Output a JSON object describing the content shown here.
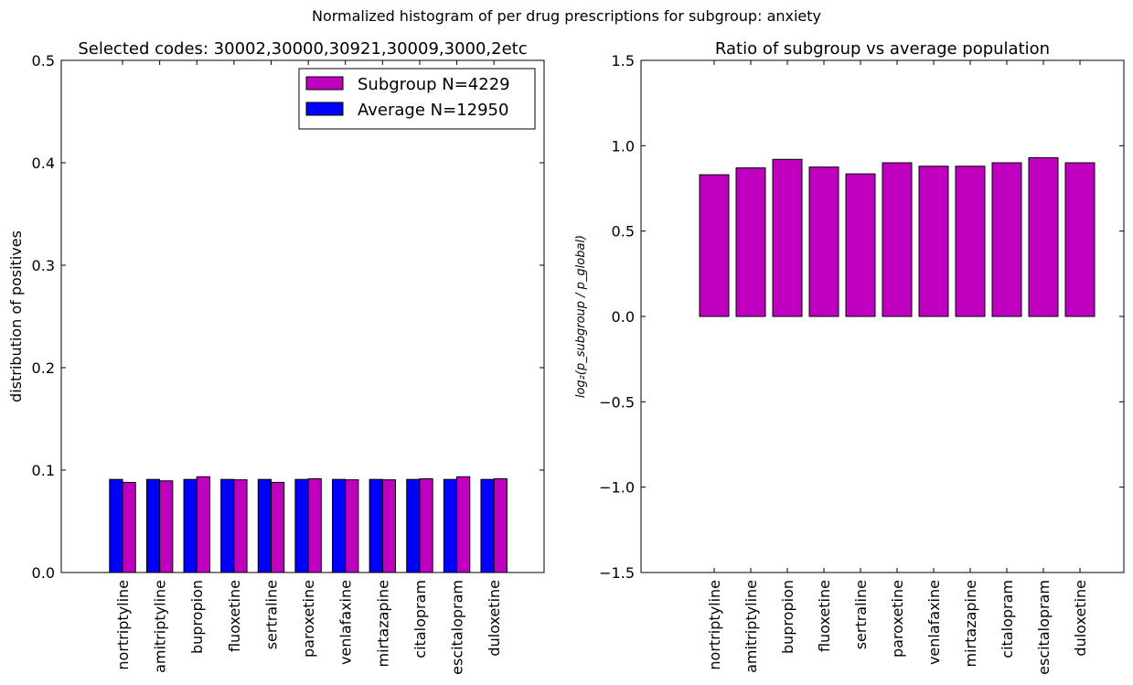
{
  "figure": {
    "suptitle": "Normalized histogram of per drug prescriptions for subgroup: anxiety"
  },
  "chart_data": [
    {
      "type": "bar",
      "title": "Selected codes: 30002,30000,30921,30009,3000,2etc",
      "xlabel": "",
      "ylabel": "distribution of positives",
      "ylim": [
        0,
        0.5
      ],
      "yticks": [
        "0.0",
        "0.1",
        "0.2",
        "0.3",
        "0.4",
        "0.5"
      ],
      "categories": [
        "nortriptyline",
        "amitriptyline",
        "bupropion",
        "fluoxetine",
        "sertraline",
        "paroxetine",
        "venlafaxine",
        "mirtazapine",
        "citalopram",
        "escitalopram",
        "duloxetine"
      ],
      "series": [
        {
          "name": "Average N=12950",
          "color": "#0000ff",
          "values": [
            0.0909,
            0.0909,
            0.0909,
            0.0909,
            0.0909,
            0.0909,
            0.0909,
            0.0909,
            0.0909,
            0.0909,
            0.0909
          ]
        },
        {
          "name": "Subgroup N=4229",
          "color": "#bf00bf",
          "values": [
            0.088,
            0.0895,
            0.0935,
            0.0905,
            0.088,
            0.0915,
            0.0905,
            0.0905,
            0.0915,
            0.0935,
            0.0915
          ]
        }
      ],
      "legend": {
        "placement": "top-right",
        "order": [
          "Subgroup N=4229",
          "Average N=12950"
        ]
      },
      "grid": false
    },
    {
      "type": "bar",
      "title": "Ratio of subgroup vs average population",
      "xlabel": "",
      "ylabel": "log₂(p_subgroup / p_global)",
      "ylim": [
        -1.5,
        1.5
      ],
      "yticks": [
        "−1.5",
        "−1.0",
        "−0.5",
        "0.0",
        "0.5",
        "1.0",
        "1.5"
      ],
      "categories": [
        "nortriptyline",
        "amitriptyline",
        "bupropion",
        "fluoxetine",
        "sertraline",
        "paroxetine",
        "venlafaxine",
        "mirtazapine",
        "citalopram",
        "escitalopram",
        "duloxetine"
      ],
      "series": [
        {
          "color": "#bf00bf",
          "values": [
            0.83,
            0.87,
            0.92,
            0.875,
            0.835,
            0.9,
            0.88,
            0.88,
            0.9,
            0.93,
            0.9
          ]
        }
      ],
      "grid": false
    }
  ]
}
